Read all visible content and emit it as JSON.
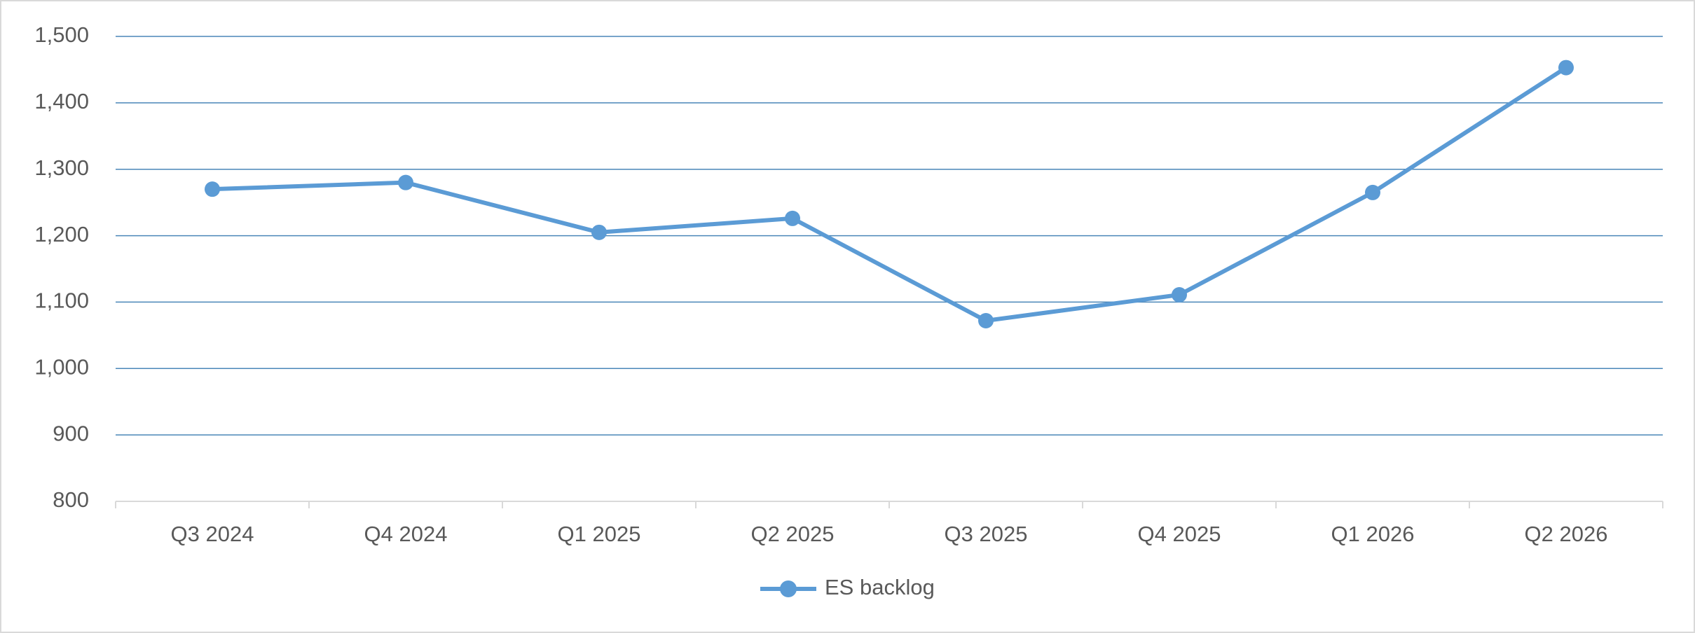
{
  "chart_data": {
    "type": "line",
    "categories": [
      "Q3 2024",
      "Q4 2024",
      "Q1 2025",
      "Q2 2025",
      "Q3 2025",
      "Q4 2025",
      "Q1 2026",
      "Q2 2026"
    ],
    "series": [
      {
        "name": "ES backlog",
        "color": "#5b9bd5",
        "values": [
          1270,
          1280,
          1205,
          1226,
          1072,
          1111,
          1265,
          1453
        ]
      }
    ],
    "ylim": [
      800,
      1500
    ],
    "yticks": [
      800,
      900,
      {
        "value": 1000,
        "label": "1,000"
      },
      {
        "value": 1100,
        "label": "1,100"
      },
      {
        "value": 1200,
        "label": "1,200"
      },
      {
        "value": 1300,
        "label": "1,300"
      },
      {
        "value": 1400,
        "label": "1,400"
      },
      {
        "value": 1500,
        "label": "1,500"
      }
    ],
    "grid": true,
    "legend": "bottom"
  }
}
